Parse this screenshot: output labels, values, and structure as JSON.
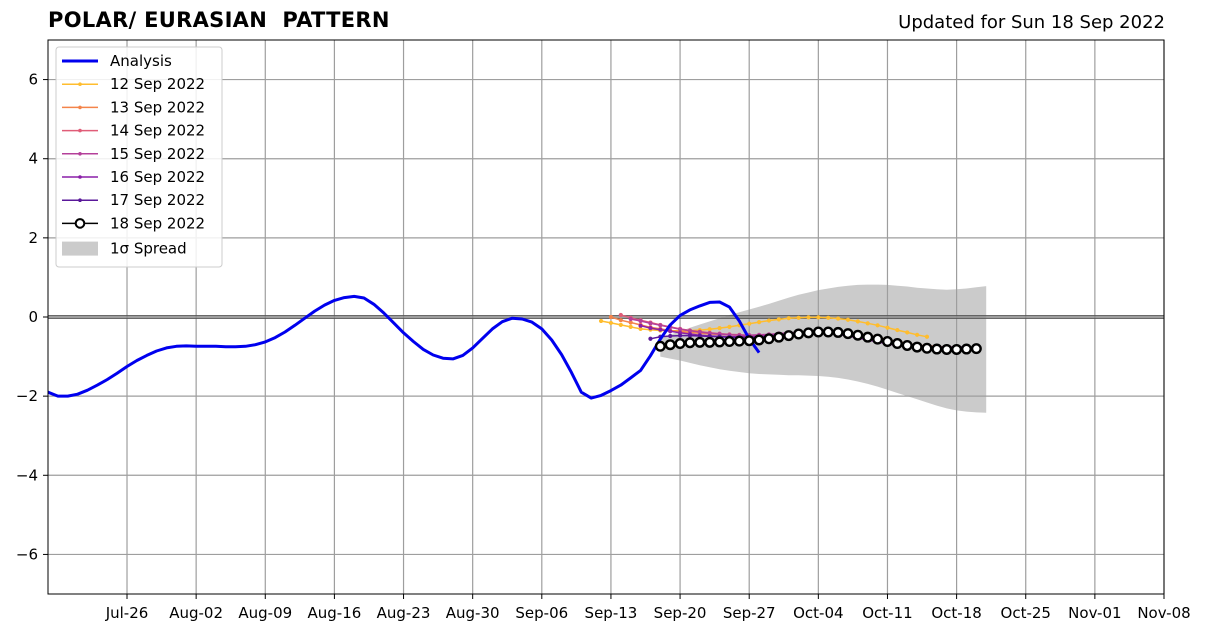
{
  "chart_data": {
    "type": "line",
    "title": "POLAR/ EURASIAN  PATTERN",
    "subtitle": "Updated for Sun 18 Sep 2022",
    "xlabel": "",
    "ylabel": "",
    "xlim": [
      "2022-07-18",
      "2022-11-08"
    ],
    "ylim": [
      -7,
      7
    ],
    "x_tick_labels": [
      "Jul-26",
      "Aug-02",
      "Aug-09",
      "Aug-16",
      "Aug-23",
      "Aug-30",
      "Sep-06",
      "Sep-13",
      "Sep-20",
      "Sep-27",
      "Oct-04",
      "Oct-11",
      "Oct-18",
      "Oct-25",
      "Nov-01",
      "Nov-08"
    ],
    "x_tick_dates": [
      "2022-07-26",
      "2022-08-02",
      "2022-08-09",
      "2022-08-16",
      "2022-08-23",
      "2022-08-30",
      "2022-09-06",
      "2022-09-13",
      "2022-09-20",
      "2022-09-27",
      "2022-10-04",
      "2022-10-11",
      "2022-10-18",
      "2022-10-25",
      "2022-11-01",
      "2022-11-08"
    ],
    "y_ticks": [
      -6,
      -4,
      -2,
      0,
      2,
      4,
      6
    ],
    "y_tick_labels": [
      "−6",
      "−4",
      "−2",
      "0",
      "2",
      "4",
      "6"
    ],
    "grid": true,
    "zero_line": true,
    "legend_position": "upper-left",
    "series": [
      {
        "name": "Analysis",
        "color": "#0000ee",
        "style": "thick-line",
        "start": "2022-07-18",
        "values": [
          -1.9,
          -2.0,
          -2.0,
          -1.95,
          -1.85,
          -1.72,
          -1.58,
          -1.42,
          -1.25,
          -1.1,
          -0.97,
          -0.86,
          -0.78,
          -0.74,
          -0.73,
          -0.74,
          -0.74,
          -0.74,
          -0.75,
          -0.75,
          -0.74,
          -0.7,
          -0.63,
          -0.52,
          -0.38,
          -0.21,
          -0.03,
          0.15,
          0.3,
          0.42,
          0.49,
          0.52,
          0.48,
          0.32,
          0.1,
          -0.15,
          -0.4,
          -0.62,
          -0.82,
          -0.96,
          -1.04,
          -1.06,
          -0.97,
          -0.78,
          -0.54,
          -0.3,
          -0.12,
          -0.03,
          -0.05,
          -0.13,
          -0.3,
          -0.58,
          -0.95,
          -1.4,
          -1.9,
          -2.05,
          -1.98,
          -1.86,
          -1.72,
          -1.54,
          -1.35,
          -0.98,
          -0.56,
          -0.2,
          0.04,
          0.18,
          0.28,
          0.37,
          0.38,
          0.25,
          -0.1,
          -0.55,
          -0.9
        ]
      },
      {
        "name": "12 Sep 2022",
        "color": "#ffbd2e",
        "style": "dot-line",
        "start": "2022-09-12",
        "values": [
          -0.1,
          -0.15,
          -0.2,
          -0.25,
          -0.3,
          -0.32,
          -0.34,
          -0.35,
          -0.35,
          -0.34,
          -0.33,
          -0.31,
          -0.28,
          -0.25,
          -0.21,
          -0.17,
          -0.13,
          -0.09,
          -0.06,
          -0.03,
          -0.02,
          -0.01,
          -0.01,
          -0.02,
          -0.04,
          -0.07,
          -0.11,
          -0.16,
          -0.21,
          -0.27,
          -0.33,
          -0.39,
          -0.45,
          -0.5
        ]
      },
      {
        "name": "13 Sep 2022",
        "color": "#f4844a",
        "style": "dot-line",
        "start": "2022-09-13",
        "values": [
          0.0,
          -0.08,
          -0.14,
          -0.2,
          -0.26,
          -0.3,
          -0.34,
          -0.37,
          -0.39,
          -0.41,
          -0.43,
          -0.44,
          -0.45,
          -0.46,
          -0.47,
          -0.47,
          -0.47,
          -0.46,
          -0.45,
          -0.43,
          -0.41,
          -0.39,
          -0.38,
          -0.38,
          -0.39,
          -0.42,
          -0.46,
          -0.51,
          -0.57,
          -0.62,
          -0.67,
          -0.71,
          -0.73,
          -0.74
        ]
      },
      {
        "name": "14 Sep 2022",
        "color": "#e05d78",
        "style": "dot-line",
        "start": "2022-09-14",
        "values": [
          0.05,
          -0.02,
          -0.08,
          -0.14,
          -0.2,
          -0.25,
          -0.3,
          -0.34,
          -0.37,
          -0.4,
          -0.42,
          -0.44,
          -0.45,
          -0.46,
          -0.46,
          -0.45,
          -0.44,
          -0.42,
          -0.4,
          -0.38,
          -0.37,
          -0.37,
          -0.38,
          -0.41,
          -0.45,
          -0.5,
          -0.55,
          -0.6,
          -0.65,
          -0.69,
          -0.72,
          -0.74,
          -0.75,
          -0.75
        ]
      },
      {
        "name": "15 Sep 2022",
        "color": "#b4409a",
        "style": "dot-line",
        "start": "2022-09-15",
        "values": [
          -0.05,
          -0.1,
          -0.16,
          -0.21,
          -0.26,
          -0.31,
          -0.35,
          -0.38,
          -0.41,
          -0.43,
          -0.45,
          -0.46,
          -0.46,
          -0.45,
          -0.44,
          -0.42,
          -0.4,
          -0.39,
          -0.38,
          -0.38,
          -0.4,
          -0.43,
          -0.47,
          -0.52,
          -0.57,
          -0.62,
          -0.66,
          -0.7,
          -0.73,
          -0.75,
          -0.76,
          -0.76,
          -0.76,
          -0.75
        ]
      },
      {
        "name": "16 Sep 2022",
        "color": "#8a1fa8",
        "style": "dot-line",
        "start": "2022-09-16",
        "values": [
          -0.22,
          -0.28,
          -0.32,
          -0.36,
          -0.4,
          -0.43,
          -0.46,
          -0.48,
          -0.49,
          -0.5,
          -0.5,
          -0.5,
          -0.49,
          -0.47,
          -0.45,
          -0.43,
          -0.41,
          -0.4,
          -0.4,
          -0.41,
          -0.44,
          -0.48,
          -0.53,
          -0.58,
          -0.63,
          -0.68,
          -0.72,
          -0.75,
          -0.77,
          -0.78,
          -0.78,
          -0.77,
          -0.76,
          -0.75
        ]
      },
      {
        "name": "17 Sep 2022",
        "color": "#5a189a",
        "style": "dot-line",
        "start": "2022-09-17",
        "values": [
          -0.55,
          -0.5,
          -0.48,
          -0.47,
          -0.47,
          -0.48,
          -0.49,
          -0.5,
          -0.51,
          -0.52,
          -0.52,
          -0.51,
          -0.49,
          -0.47,
          -0.45,
          -0.43,
          -0.42,
          -0.41,
          -0.41,
          -0.43,
          -0.46,
          -0.5,
          -0.55,
          -0.6,
          -0.65,
          -0.7,
          -0.74,
          -0.77,
          -0.79,
          -0.79,
          -0.79,
          -0.78,
          -0.77,
          -0.76
        ]
      },
      {
        "name": "18 Sep 2022",
        "color": "#000000",
        "style": "circle-line",
        "start": "2022-09-18",
        "values": [
          -0.74,
          -0.7,
          -0.67,
          -0.65,
          -0.64,
          -0.64,
          -0.63,
          -0.62,
          -0.61,
          -0.6,
          -0.58,
          -0.55,
          -0.51,
          -0.47,
          -0.43,
          -0.4,
          -0.38,
          -0.38,
          -0.39,
          -0.42,
          -0.46,
          -0.51,
          -0.56,
          -0.62,
          -0.67,
          -0.72,
          -0.76,
          -0.79,
          -0.81,
          -0.82,
          -0.82,
          -0.81,
          -0.8
        ]
      }
    ],
    "spread": {
      "name": "1σ Spread",
      "color": "#cbcbcb",
      "start": "2022-09-18",
      "upper": [
        -0.55,
        -0.45,
        -0.36,
        -0.27,
        -0.19,
        -0.11,
        -0.03,
        0.05,
        0.12,
        0.19,
        0.26,
        0.33,
        0.41,
        0.49,
        0.56,
        0.62,
        0.68,
        0.72,
        0.76,
        0.79,
        0.81,
        0.82,
        0.82,
        0.81,
        0.79,
        0.77,
        0.74,
        0.72,
        0.7,
        0.69,
        0.7,
        0.72,
        0.75,
        0.78
      ],
      "lower": [
        -1.0,
        -1.05,
        -1.1,
        -1.16,
        -1.22,
        -1.27,
        -1.32,
        -1.36,
        -1.39,
        -1.42,
        -1.44,
        -1.45,
        -1.46,
        -1.47,
        -1.47,
        -1.48,
        -1.49,
        -1.51,
        -1.54,
        -1.58,
        -1.63,
        -1.69,
        -1.76,
        -1.84,
        -1.92,
        -2.0,
        -2.08,
        -2.16,
        -2.24,
        -2.31,
        -2.36,
        -2.39,
        -2.41,
        -2.42
      ]
    }
  }
}
